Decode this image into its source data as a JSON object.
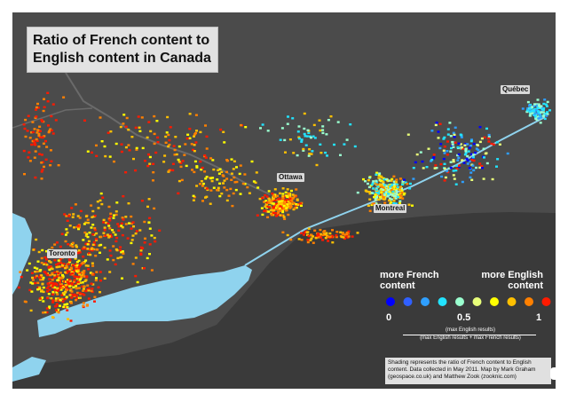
{
  "title": {
    "line1": "Ratio of French content to",
    "line2": "English content in Canada"
  },
  "cities": [
    {
      "name": "Québec",
      "key": "quebec"
    },
    {
      "name": "Ottawa",
      "key": "ottawa"
    },
    {
      "name": "Montreal",
      "key": "montreal"
    },
    {
      "name": "Toronto",
      "key": "toronto"
    }
  ],
  "legend": {
    "left_label": "more French content",
    "right_label": "more English content",
    "left_label_l1": "more French",
    "left_label_l2": "content",
    "right_label_l1": "more English",
    "right_label_l2": "content",
    "tick_0": "0",
    "tick_05": "0.5",
    "tick_1": "1",
    "scale_colors": [
      "#0000ff",
      "#3060ff",
      "#2f9fff",
      "#22e3ff",
      "#9affcf",
      "#e8ff7a",
      "#ffff00",
      "#ffc000",
      "#ff8000",
      "#ff1a00"
    ],
    "formula_numerator": "(max English results)",
    "formula_denominator": "(max English results + max French results)"
  },
  "credit": "Shading represents the ratio of French content to English content. Data collected in May 2011. Map by Mark Graham (geospace.co.uk) and Matthew Zook (zooknic.com)",
  "colors": {
    "land": "#4b4b4b",
    "us_land": "#3a3a3a",
    "water": "#8fd3ee",
    "border_line": "#6a6a6a"
  }
}
